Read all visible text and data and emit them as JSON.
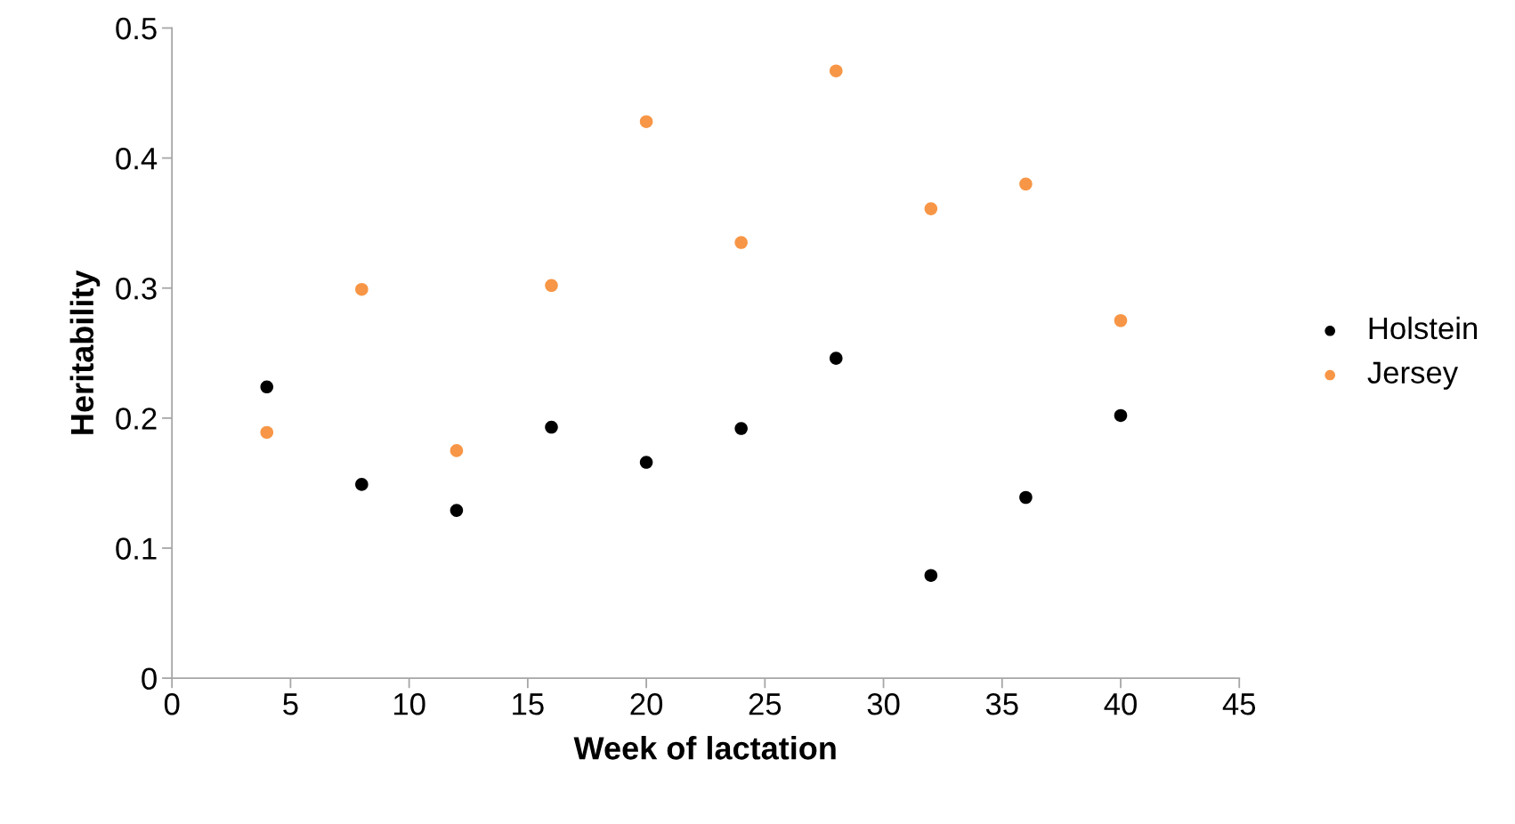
{
  "chart_data": {
    "type": "scatter",
    "xlabel": "Week of lactation",
    "ylabel": "Heritability",
    "x": [
      4,
      8,
      12,
      16,
      20,
      24,
      28,
      32,
      36,
      40
    ],
    "series": [
      {
        "name": "Holstein",
        "color": "#000000",
        "values": [
          0.224,
          0.149,
          0.129,
          0.193,
          0.166,
          0.192,
          0.246,
          0.079,
          0.139,
          0.202
        ]
      },
      {
        "name": "Jersey",
        "color": "#f79646",
        "values": [
          0.189,
          0.299,
          0.175,
          0.302,
          0.428,
          0.335,
          0.467,
          0.361,
          0.38,
          0.275
        ]
      }
    ],
    "xlim": [
      0,
      45
    ],
    "xticks": [
      0,
      5,
      10,
      15,
      20,
      25,
      30,
      35,
      40,
      45
    ],
    "ylim": [
      0,
      0.5
    ],
    "yticks": [
      0,
      0.1,
      0.2,
      0.3,
      0.4,
      0.5
    ],
    "grid": false,
    "legend": "right",
    "marker": "circle"
  }
}
